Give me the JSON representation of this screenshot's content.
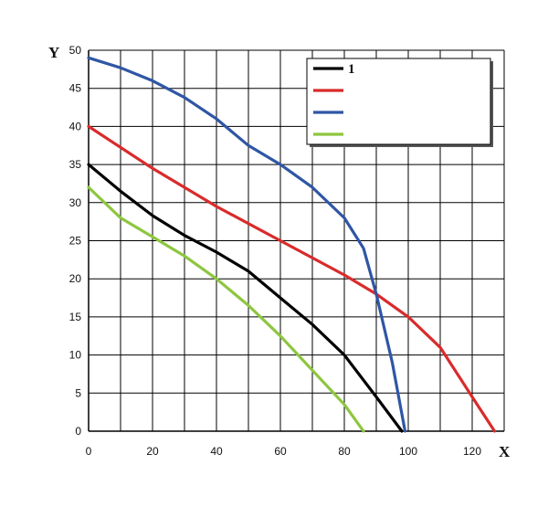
{
  "chart_data": {
    "type": "line",
    "xlabel": "X",
    "ylabel": "Y",
    "xlim": [
      0,
      130
    ],
    "ylim": [
      0,
      50
    ],
    "x_ticks": [
      0,
      20,
      40,
      60,
      80,
      100,
      120
    ],
    "y_ticks": [
      0,
      5,
      10,
      15,
      20,
      25,
      30,
      35,
      40,
      45,
      50
    ],
    "grid": true,
    "legend_position": "top-right",
    "series": [
      {
        "name": "1",
        "color": "#000000",
        "x": [
          0,
          10,
          20,
          30,
          40,
          50,
          60,
          70,
          80,
          90,
          98
        ],
        "y": [
          35,
          31.5,
          28.3,
          25.7,
          23.5,
          21,
          17.5,
          14,
          10,
          4.5,
          0
        ]
      },
      {
        "name": "",
        "color": "#d92b2b",
        "x": [
          0,
          20,
          40,
          60,
          80,
          90,
          100,
          110,
          120,
          127
        ],
        "y": [
          40,
          34.5,
          29.5,
          25,
          20.5,
          18,
          15,
          11,
          4.5,
          0
        ]
      },
      {
        "name": "",
        "color": "#2f56a5",
        "x": [
          0,
          10,
          20,
          30,
          40,
          50,
          60,
          70,
          80,
          86,
          90,
          95,
          99
        ],
        "y": [
          49,
          47.7,
          46,
          43.8,
          41,
          37.5,
          35,
          32,
          28,
          24,
          18,
          9,
          0
        ]
      },
      {
        "name": "",
        "color": "#8dc63f",
        "x": [
          0,
          10,
          20,
          30,
          40,
          50,
          60,
          70,
          80,
          86
        ],
        "y": [
          32,
          28,
          25.5,
          23,
          20,
          16.5,
          12.5,
          8,
          3.5,
          0
        ]
      }
    ]
  }
}
